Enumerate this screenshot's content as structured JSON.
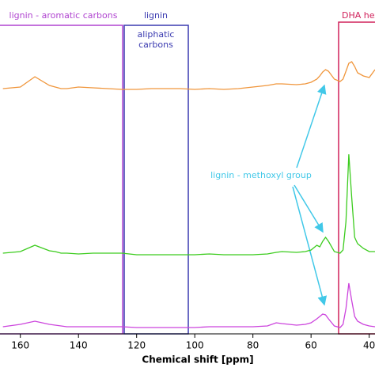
{
  "chart_data": {
    "type": "line",
    "x_label": "Chemical shift [ppm]",
    "annotations": {
      "aromatic": "lignin - aromatic carbons",
      "aliphatic": [
        "lignin",
        "aliphatic",
        "carbons"
      ],
      "dha": "DHA hex",
      "methoxyl": "lignin - methoxyl group"
    },
    "x": [
      166,
      160,
      155,
      150,
      148,
      146,
      144,
      140,
      135,
      130,
      125,
      120,
      115,
      110,
      105,
      100,
      95,
      90,
      85,
      80,
      75,
      72,
      70,
      65,
      62,
      60,
      58,
      57,
      56,
      55,
      54,
      52,
      50,
      49,
      48,
      47,
      46,
      45,
      44,
      42,
      40,
      38
    ],
    "xlim": [
      167,
      38
    ],
    "xticks": [
      160,
      140,
      120,
      100,
      80,
      60,
      40
    ],
    "ylim": [
      0,
      422
    ],
    "series": [
      {
        "color": "#f0963c",
        "values": [
          310,
          312,
          325,
          314,
          312,
          310,
          310,
          312,
          311,
          310,
          309,
          309,
          310,
          310,
          310,
          309,
          310,
          309,
          310,
          312,
          314,
          316,
          316,
          315,
          316,
          318,
          322,
          326,
          331,
          334,
          332,
          322,
          319,
          322,
          332,
          342,
          344,
          338,
          330,
          326,
          324,
          334
        ]
      },
      {
        "color": "#3ccc1e",
        "values": [
          102,
          104,
          112,
          105,
          104,
          102,
          102,
          101,
          102,
          102,
          102,
          100,
          100,
          100,
          100,
          100,
          101,
          100,
          100,
          100,
          101,
          103,
          104,
          103,
          104,
          106,
          112,
          110,
          117,
          122,
          117,
          104,
          102,
          106,
          142,
          227,
          172,
          122,
          114,
          108,
          104,
          104
        ]
      },
      {
        "color": "#cc44dd",
        "values": [
          9,
          12,
          16,
          12,
          11,
          10,
          9,
          9,
          9,
          9,
          9,
          8,
          8,
          8,
          8,
          8,
          9,
          9,
          9,
          9,
          10,
          14,
          13,
          11,
          12,
          14,
          19,
          22,
          25,
          24,
          19,
          10,
          8,
          12,
          32,
          64,
          42,
          22,
          16,
          12,
          10,
          9
        ]
      }
    ]
  }
}
